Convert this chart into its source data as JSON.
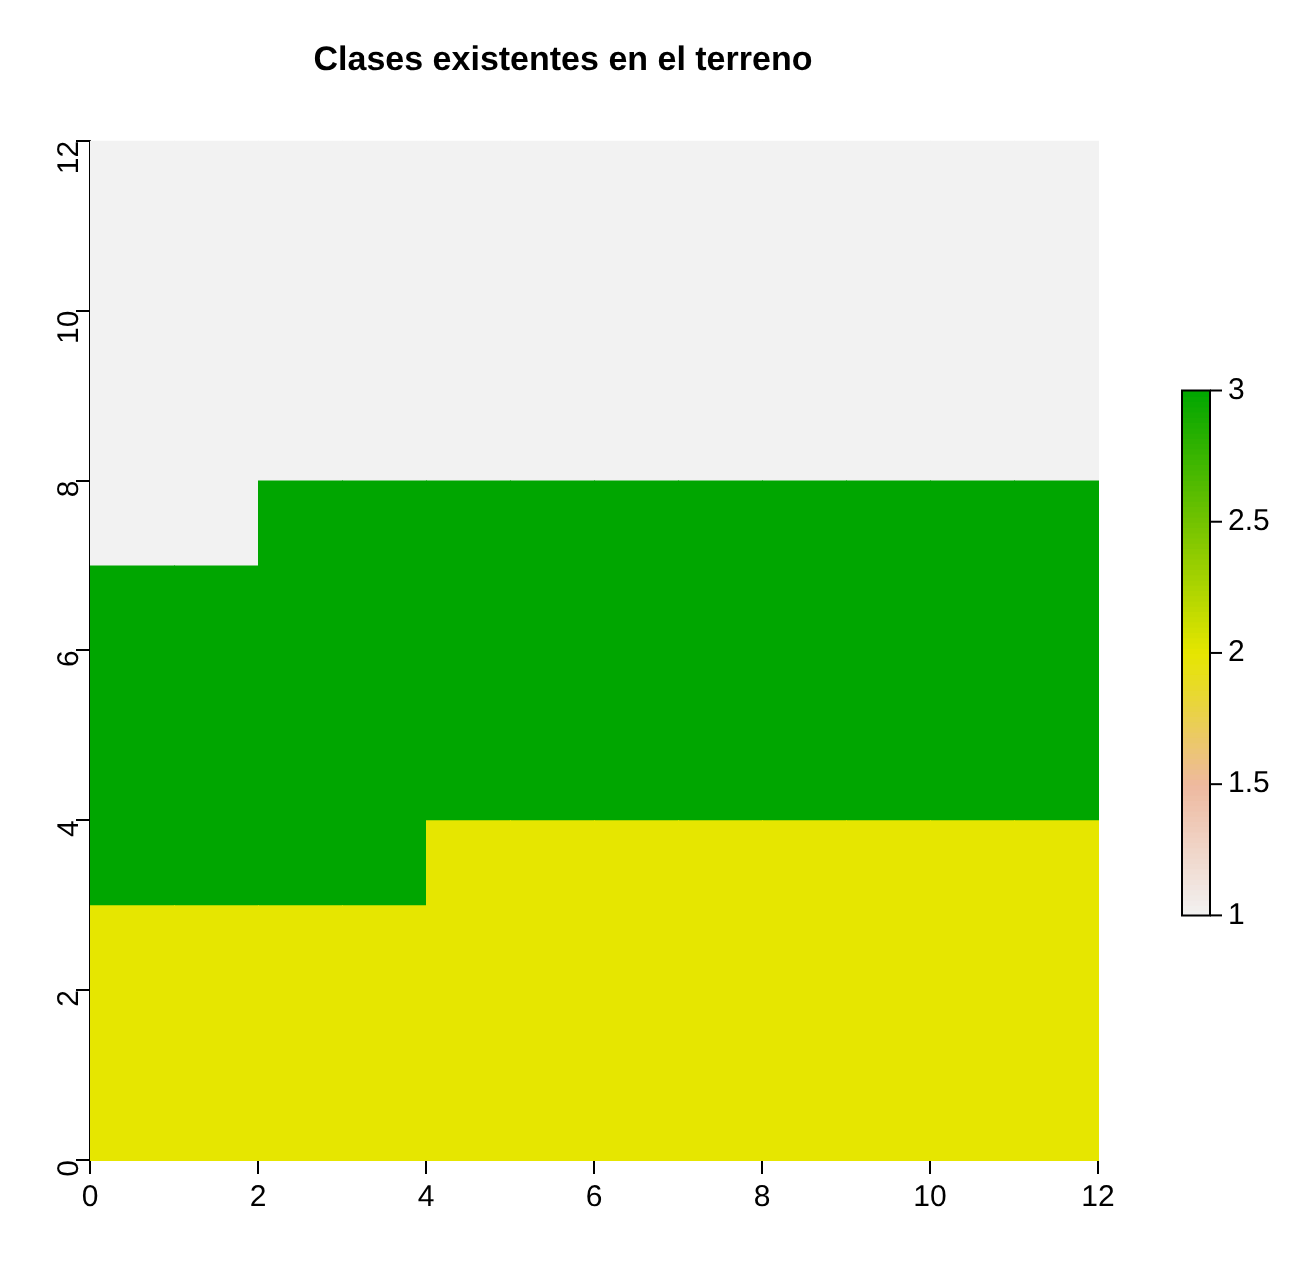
{
  "chart_data": {
    "type": "heatmap",
    "title": "Clases existentes en el terreno",
    "x": [
      0.5,
      1.5,
      2.5,
      3.5,
      4.5,
      5.5,
      6.5,
      7.5,
      8.5,
      9.5,
      10.5,
      11.5
    ],
    "y": [
      11.5,
      10.5,
      9.5,
      8.5,
      7.5,
      6.5,
      5.5,
      4.5,
      3.5,
      2.5,
      1.5,
      0.5
    ],
    "xlim": [
      0,
      12
    ],
    "ylim": [
      0,
      12
    ],
    "xticks": [
      0,
      2,
      4,
      6,
      8,
      10,
      12
    ],
    "yticks": [
      0,
      2,
      4,
      6,
      8,
      10,
      12
    ],
    "clim": [
      1,
      3
    ],
    "cticks": [
      1,
      1.5,
      2,
      2.5,
      3
    ],
    "colors": [
      "#f2f2f2",
      "#eeb99f",
      "#e6e600",
      "#73c300",
      "#00a600"
    ],
    "cells": [
      [
        1,
        1,
        1,
        1,
        1,
        1,
        1,
        1,
        1,
        1,
        1,
        1
      ],
      [
        1,
        1,
        1,
        1,
        1,
        1,
        1,
        1,
        1,
        1,
        1,
        1
      ],
      [
        1,
        1,
        1,
        1,
        1,
        1,
        1,
        1,
        1,
        1,
        1,
        1
      ],
      [
        1,
        1,
        1,
        1,
        1,
        1,
        1,
        1,
        1,
        1,
        1,
        1
      ],
      [
        1,
        1,
        3,
        3,
        3,
        3,
        3,
        3,
        3,
        3,
        3,
        3
      ],
      [
        3,
        3,
        3,
        3,
        3,
        3,
        3,
        3,
        3,
        3,
        3,
        3
      ],
      [
        3,
        3,
        3,
        3,
        3,
        3,
        3,
        3,
        3,
        3,
        3,
        3
      ],
      [
        3,
        3,
        3,
        3,
        3,
        3,
        3,
        3,
        3,
        3,
        3,
        3
      ],
      [
        3,
        3,
        3,
        3,
        2,
        2,
        2,
        2,
        2,
        2,
        2,
        2
      ],
      [
        2,
        2,
        2,
        2,
        2,
        2,
        2,
        2,
        2,
        2,
        2,
        2
      ],
      [
        2,
        2,
        2,
        2,
        2,
        2,
        2,
        2,
        2,
        2,
        2,
        2
      ],
      [
        2,
        2,
        2,
        2,
        2,
        2,
        2,
        2,
        2,
        2,
        2,
        2
      ]
    ]
  }
}
